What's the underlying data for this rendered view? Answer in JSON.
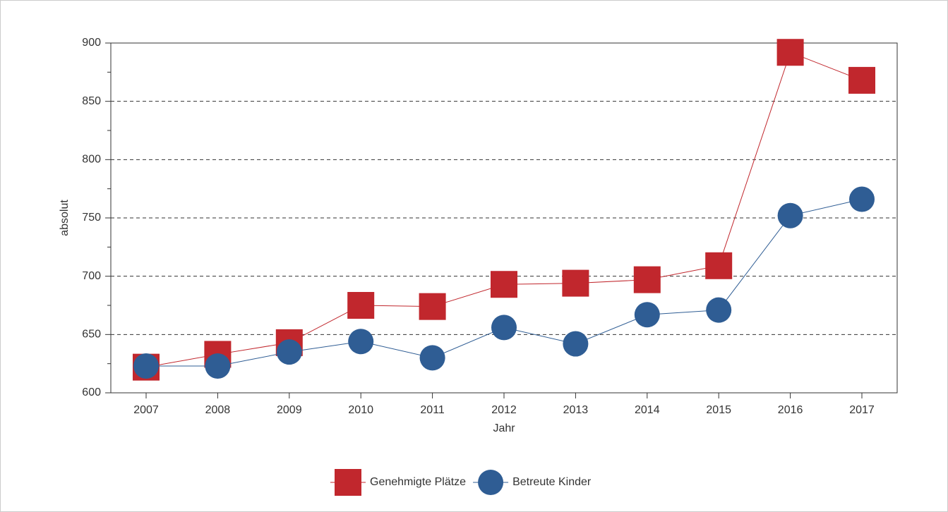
{
  "chart_data": {
    "type": "line",
    "x_label": "Jahr",
    "y_label": "absolut",
    "categories": [
      "2007",
      "2008",
      "2009",
      "2010",
      "2011",
      "2012",
      "2013",
      "2014",
      "2015",
      "2016",
      "2017"
    ],
    "series": [
      {
        "name": "Genehmigte Plätze",
        "color": "#c1272d",
        "marker": "square",
        "values": [
          622,
          633,
          643,
          675,
          674,
          693,
          694,
          697,
          709,
          892,
          868
        ]
      },
      {
        "name": "Betreute Kinder",
        "color": "#2f5d94",
        "marker": "circle",
        "values": [
          623,
          623,
          635,
          644,
          630,
          656,
          642,
          667,
          671,
          752,
          766
        ]
      }
    ],
    "ylim": [
      600,
      900
    ],
    "yticks": [
      600,
      650,
      700,
      750,
      800,
      850,
      900
    ],
    "yticks_minor": [
      625,
      675,
      725,
      775,
      825,
      875
    ],
    "grid": true,
    "legend": "bottom"
  }
}
